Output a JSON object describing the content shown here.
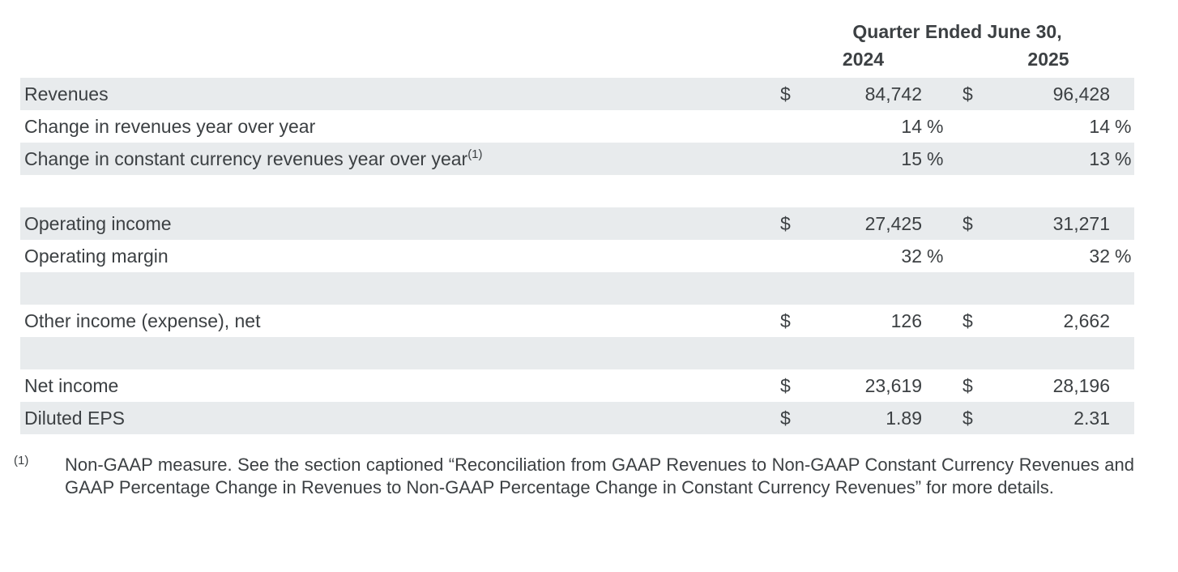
{
  "header": {
    "title": "Quarter Ended June 30,",
    "col_2024": "2024",
    "col_2025": "2025"
  },
  "table": {
    "rows": [
      {
        "label": "Revenues",
        "sup": "",
        "y2024": {
          "cur": "$",
          "val": "84,742",
          "suf": ""
        },
        "y2025": {
          "cur": "$",
          "val": "96,428",
          "suf": ""
        },
        "shaded": true
      },
      {
        "label": "Change in revenues year over year",
        "sup": "",
        "y2024": {
          "cur": "",
          "val": "14",
          "suf": "%"
        },
        "y2025": {
          "cur": "",
          "val": "14",
          "suf": "%"
        },
        "shaded": false
      },
      {
        "label": "Change in constant currency revenues year over year",
        "sup": "(1)",
        "y2024": {
          "cur": "",
          "val": "15",
          "suf": "%"
        },
        "y2025": {
          "cur": "",
          "val": "13",
          "suf": "%"
        },
        "shaded": true
      },
      {
        "label": "",
        "sup": "",
        "y2024": {
          "cur": "",
          "val": "",
          "suf": ""
        },
        "y2025": {
          "cur": "",
          "val": "",
          "suf": ""
        },
        "shaded": false
      },
      {
        "label": "Operating income",
        "sup": "",
        "y2024": {
          "cur": "$",
          "val": "27,425",
          "suf": ""
        },
        "y2025": {
          "cur": "$",
          "val": "31,271",
          "suf": ""
        },
        "shaded": true
      },
      {
        "label": "Operating margin",
        "sup": "",
        "y2024": {
          "cur": "",
          "val": "32",
          "suf": "%"
        },
        "y2025": {
          "cur": "",
          "val": "32",
          "suf": "%"
        },
        "shaded": false
      },
      {
        "label": "",
        "sup": "",
        "y2024": {
          "cur": "",
          "val": "",
          "suf": ""
        },
        "y2025": {
          "cur": "",
          "val": "",
          "suf": ""
        },
        "shaded": true
      },
      {
        "label": "Other income (expense), net",
        "sup": "",
        "y2024": {
          "cur": "$",
          "val": "126",
          "suf": ""
        },
        "y2025": {
          "cur": "$",
          "val": "2,662",
          "suf": ""
        },
        "shaded": false
      },
      {
        "label": "",
        "sup": "",
        "y2024": {
          "cur": "",
          "val": "",
          "suf": ""
        },
        "y2025": {
          "cur": "",
          "val": "",
          "suf": ""
        },
        "shaded": true
      },
      {
        "label": "Net income",
        "sup": "",
        "y2024": {
          "cur": "$",
          "val": "23,619",
          "suf": ""
        },
        "y2025": {
          "cur": "$",
          "val": "28,196",
          "suf": ""
        },
        "shaded": false
      },
      {
        "label": "Diluted EPS",
        "sup": "",
        "y2024": {
          "cur": "$",
          "val": "1.89",
          "suf": ""
        },
        "y2025": {
          "cur": "$",
          "val": "2.31",
          "suf": ""
        },
        "shaded": true
      }
    ]
  },
  "footnote": {
    "marker": "(1)",
    "text": "Non-GAAP measure. See the section captioned “Reconciliation from GAAP Revenues to Non-GAAP Constant Currency Revenues and GAAP Percentage Change in Revenues to Non-GAAP Percentage Change in Constant Currency Revenues” for more details."
  },
  "colors": {
    "stripe": "#e8ebed",
    "text": "#3c4043"
  }
}
